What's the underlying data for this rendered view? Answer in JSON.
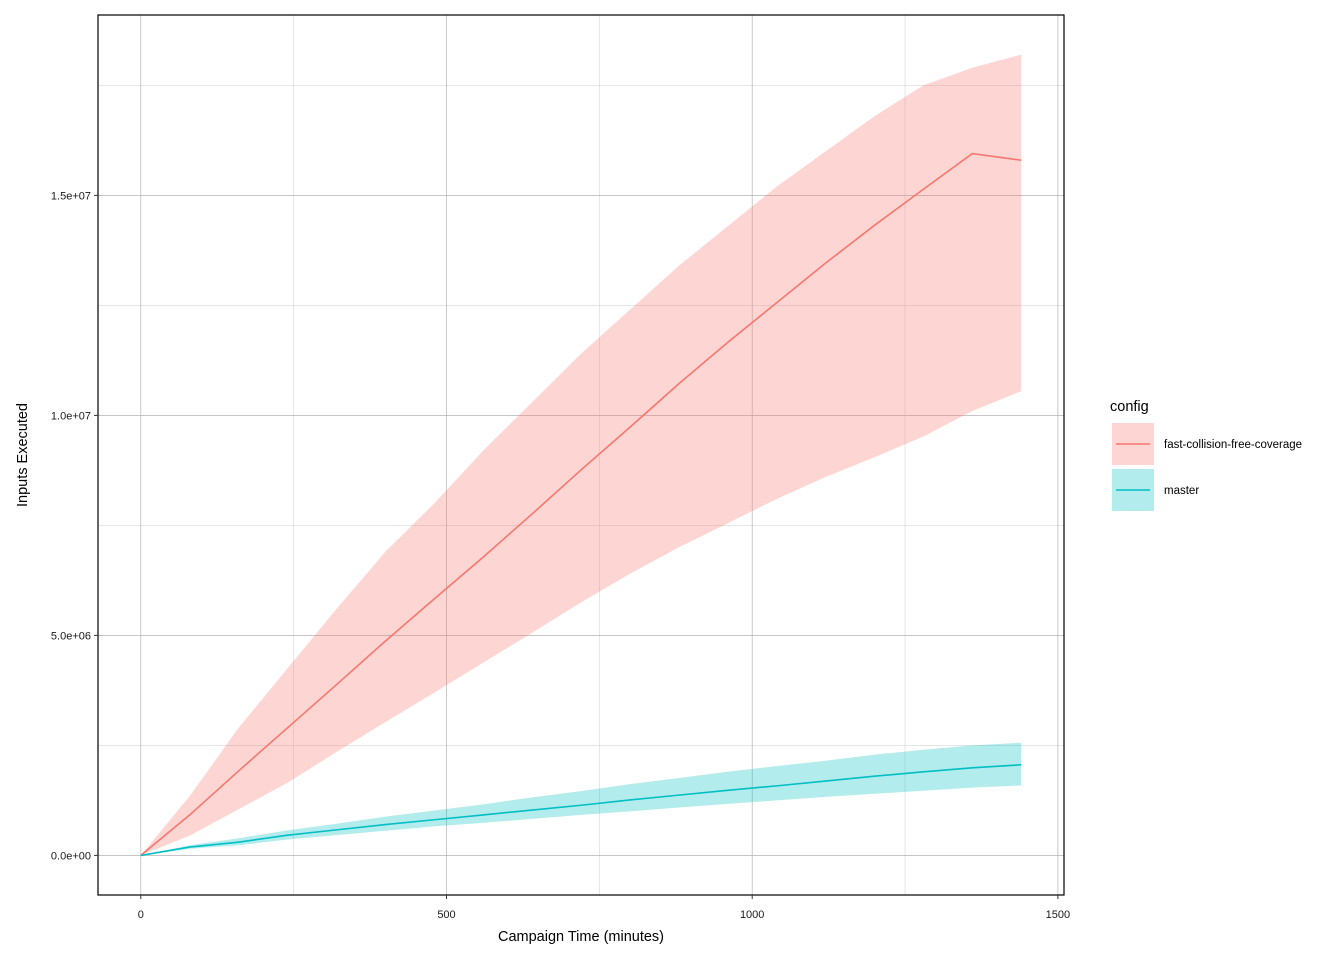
{
  "chart_data": {
    "type": "line",
    "title": "",
    "xlabel": "Campaign Time (minutes)",
    "ylabel": "Inputs Executed",
    "xlim": [
      -70,
      1510
    ],
    "ylim": [
      -900000,
      19100000
    ],
    "x_ticks": [
      0,
      500,
      1000,
      1500
    ],
    "x_tick_labels": [
      "0",
      "500",
      "1000",
      "1500"
    ],
    "y_ticks": [
      0,
      5000000,
      10000000,
      15000000
    ],
    "y_tick_labels": [
      "0.0e+00",
      "5.0e+06",
      "1.0e+07",
      "1.5e+07"
    ],
    "grid": true,
    "legend": {
      "title": "config",
      "position": "right"
    },
    "series": [
      {
        "name": "fast-collision-free-coverage",
        "color": "#F8766D",
        "ribbon_color": "#F8766D",
        "x": [
          0,
          80,
          160,
          240,
          320,
          400,
          480,
          560,
          640,
          720,
          800,
          880,
          960,
          1040,
          1120,
          1200,
          1280,
          1360,
          1440
        ],
        "y": [
          0,
          920000,
          1920000,
          2900000,
          3880000,
          4870000,
          5830000,
          6780000,
          7760000,
          8760000,
          9730000,
          10720000,
          11660000,
          12560000,
          13460000,
          14320000,
          15140000,
          15950000,
          15800000
        ],
        "lower": [
          0,
          450000,
          1050000,
          1650000,
          2350000,
          3030000,
          3700000,
          4380000,
          5060000,
          5750000,
          6400000,
          7000000,
          7550000,
          8100000,
          8600000,
          9050000,
          9520000,
          10100000,
          10550000
        ],
        "upper": [
          0,
          1350000,
          2900000,
          4250000,
          5600000,
          6900000,
          8000000,
          9200000,
          10300000,
          11400000,
          12400000,
          13400000,
          14300000,
          15200000,
          16000000,
          16800000,
          17500000,
          17900000,
          18200000
        ]
      },
      {
        "name": "master",
        "color": "#00BFC4",
        "ribbon_color": "#00BFC4",
        "x": [
          0,
          80,
          160,
          240,
          320,
          400,
          480,
          560,
          640,
          720,
          800,
          880,
          960,
          1040,
          1120,
          1200,
          1280,
          1360,
          1440
        ],
        "y": [
          0,
          190000,
          300000,
          460000,
          580000,
          700000,
          810000,
          920000,
          1030000,
          1140000,
          1260000,
          1370000,
          1480000,
          1580000,
          1690000,
          1800000,
          1900000,
          1990000,
          2060000
        ],
        "lower": [
          0,
          150000,
          230000,
          360000,
          460000,
          560000,
          660000,
          740000,
          830000,
          920000,
          1000000,
          1090000,
          1170000,
          1250000,
          1330000,
          1400000,
          1470000,
          1540000,
          1590000
        ],
        "upper": [
          0,
          230000,
          390000,
          570000,
          720000,
          880000,
          1020000,
          1160000,
          1320000,
          1460000,
          1620000,
          1760000,
          1900000,
          2030000,
          2150000,
          2290000,
          2400000,
          2500000,
          2560000
        ]
      }
    ]
  }
}
